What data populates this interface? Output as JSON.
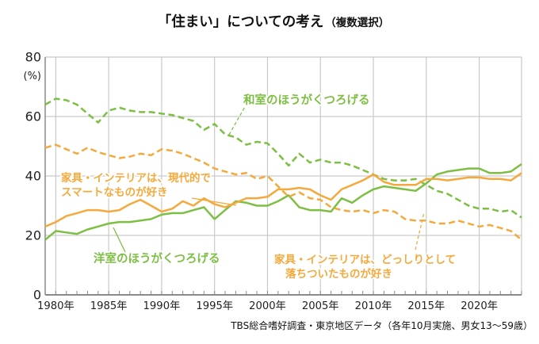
{
  "title": {
    "main": "「住まい」についての考え",
    "sub": "（複数選択）"
  },
  "caption": "TBS総合嗜好調査・東京地区データ（各年10月実施、男女13～59歳）",
  "y_axis": {
    "unit": "(%)",
    "ticks": [
      80,
      60,
      40,
      20,
      0
    ]
  },
  "x_axis": {
    "ticks": [
      1980,
      1985,
      1990,
      1995,
      2000,
      2005,
      2010,
      2015,
      2020
    ],
    "suffix": "年"
  },
  "labels": {
    "washitsu": "和室のほうがくつろげる",
    "yoshitsu": "洋室のほうがくつろげる",
    "modern_l1": "家具・インテリアは、現代的で",
    "modern_l2": "スマートなものが好き",
    "classic_l1": "家具・インテリアは、どっしりとして",
    "classic_l2": "落ちついたものが好き"
  },
  "colors": {
    "green": "#7cbf42",
    "orange": "#f5a93c",
    "grid": "#c9c9c9",
    "axis": "#8a8a8a"
  },
  "chart_data": {
    "type": "line",
    "title": "「住まい」についての考え（複数選択）",
    "ylabel": "(%)",
    "ylim": [
      0,
      80
    ],
    "y_ticks": [
      0,
      20,
      40,
      60,
      80
    ],
    "grid": true,
    "years": [
      1979,
      1980,
      1981,
      1982,
      1983,
      1984,
      1985,
      1986,
      1987,
      1988,
      1989,
      1990,
      1991,
      1992,
      1993,
      1994,
      1995,
      1996,
      1997,
      1998,
      1999,
      2000,
      2001,
      2002,
      2003,
      2004,
      2005,
      2006,
      2007,
      2008,
      2009,
      2010,
      2011,
      2012,
      2013,
      2014,
      2015,
      2016,
      2017,
      2018,
      2019,
      2020,
      2021,
      2022,
      2023,
      2024
    ],
    "series": [
      {
        "name": "和室のほうがくつろげる",
        "color": "#7cbf42",
        "style": "dashed",
        "values": [
          64,
          66,
          65.5,
          64,
          61,
          58,
          62,
          63,
          62,
          61.5,
          61.5,
          61,
          60.5,
          59.5,
          58.5,
          55.5,
          57.5,
          54,
          53,
          50.5,
          51.5,
          51,
          47.5,
          43.5,
          47.5,
          44.5,
          45.5,
          44.5,
          44.5,
          43.5,
          42,
          40.5,
          39,
          38.5,
          38.5,
          39,
          37,
          35,
          34,
          32,
          30,
          29,
          29,
          28,
          28.5,
          26
        ]
      },
      {
        "name": "洋室のほうがくつろげる",
        "color": "#7cbf42",
        "style": "solid",
        "values": [
          18.5,
          21.5,
          21,
          20.5,
          22,
          23,
          24,
          24.5,
          24.5,
          25,
          25.5,
          27,
          27.5,
          27.5,
          28.5,
          29.5,
          25.5,
          28.5,
          31.5,
          31,
          30,
          30,
          31.5,
          33.5,
          29.5,
          28.5,
          28.5,
          28,
          32.5,
          31,
          33.5,
          35.5,
          36.5,
          36,
          35.5,
          35,
          37.5,
          40.5,
          41.5,
          42,
          42.5,
          42.5,
          41,
          41,
          41.5,
          44
        ]
      },
      {
        "name": "家具・インテリアは、現代的でスマートなものが好き",
        "color": "#f5a93c",
        "style": "solid",
        "values": [
          23,
          24.5,
          26.5,
          27.5,
          28.5,
          28.5,
          28,
          28.5,
          30.5,
          32,
          30,
          28,
          29,
          31.5,
          30,
          32.5,
          30.5,
          29.5,
          31,
          32.5,
          32.5,
          33,
          35.5,
          35.5,
          36,
          35.5,
          33.5,
          32,
          35.5,
          37,
          38.5,
          40.5,
          38,
          37,
          37,
          37,
          39,
          39,
          38.5,
          39,
          39.5,
          39.5,
          39,
          39,
          38.5,
          41
        ]
      },
      {
        "name": "家具・インテリアは、どっしりとして落ちついたものが好き",
        "color": "#f5a93c",
        "style": "dashed",
        "values": [
          49.5,
          50.5,
          49,
          47.5,
          49.5,
          48,
          47,
          46,
          46.5,
          47.5,
          47,
          49,
          48.5,
          47.5,
          46,
          44.5,
          42.5,
          41.5,
          40.5,
          41,
          39,
          40,
          36.5,
          33,
          34.5,
          32.5,
          32,
          29.5,
          28.5,
          28,
          28.5,
          27.5,
          28.5,
          28,
          25.5,
          25,
          25,
          24,
          24,
          25,
          24,
          23,
          23.5,
          22.5,
          21.5,
          18.5
        ]
      }
    ]
  }
}
